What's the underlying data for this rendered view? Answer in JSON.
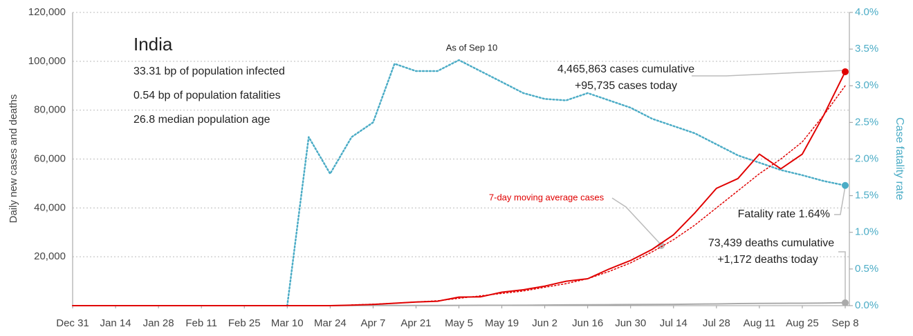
{
  "chart_data": {
    "type": "line",
    "title": "India",
    "annotations": {
      "infected": "33.31 bp of population infected",
      "fatalities": "0.54 bp of population fatalities",
      "age": "26.8 median population age",
      "as_of": "As of Sep 10",
      "cases_cumulative": "4,465,863 cases cumulative",
      "cases_today": "+95,735 cases today",
      "fatality_rate": "Fatality rate 1.64%",
      "deaths_cumulative": "73,439 deaths cumulative",
      "deaths_today": "+1,172 deaths today"
    },
    "y_label": "Daily new cases and deaths",
    "y2_label": "Case fatality rate",
    "categories": [
      "Dec 31",
      null,
      "Jan 14",
      null,
      "Jan 28",
      null,
      "Feb 11",
      null,
      "Feb 25",
      null,
      "Mar 10",
      null,
      "Mar 24",
      null,
      "Apr 7",
      null,
      "Apr 21",
      null,
      "May 5",
      null,
      "May 19",
      null,
      "Jun 2",
      null,
      "Jun 16",
      null,
      "Jun 30",
      null,
      "Jul 14",
      null,
      "Jul 28",
      null,
      "Aug 11",
      null,
      "Aug 25",
      null,
      "Sep 8"
    ],
    "series": [
      {
        "color": "#4bacc6",
        "style": "dotted",
        "axis": "y2",
        "values": [
          null,
          null,
          null,
          null,
          null,
          null,
          null,
          null,
          null,
          null,
          0,
          2.3,
          1.8,
          2.3,
          2.5,
          3.3,
          3.2,
          3.2,
          3.35,
          3.2,
          3.05,
          2.9,
          2.82,
          2.8,
          2.9,
          2.8,
          2.7,
          2.55,
          2.45,
          2.35,
          2.2,
          2.05,
          1.95,
          1.85,
          1.78,
          1.7,
          1.64
        ]
      },
      {
        "color": "#aaaaaa",
        "style": "solid",
        "values": [
          0,
          0,
          0,
          0,
          0,
          0,
          0,
          0,
          0,
          0,
          0,
          0,
          10,
          50,
          100,
          50,
          60,
          80,
          100,
          140,
          150,
          180,
          250,
          300,
          350,
          400,
          450,
          480,
          550,
          650,
          700,
          850,
          900,
          950,
          1000,
          1050,
          1172
        ]
      },
      {
        "name": "7-day moving average cases",
        "color": "#e00000",
        "style": "dotted",
        "values": [
          null,
          null,
          null,
          null,
          null,
          null,
          null,
          null,
          null,
          null,
          null,
          null,
          null,
          300,
          600,
          1000,
          1500,
          2000,
          3000,
          4000,
          5000,
          6000,
          7500,
          9000,
          11000,
          14000,
          17500,
          22000,
          27000,
          33000,
          40000,
          47000,
          54000,
          60000,
          67000,
          78000,
          90000
        ]
      },
      {
        "color": "#e00000",
        "style": "solid",
        "values": [
          0,
          0,
          0,
          0,
          0,
          0,
          0,
          0,
          0,
          0,
          0,
          0,
          0,
          200,
          500,
          1000,
          1500,
          1800,
          3500,
          3600,
          5500,
          6500,
          8000,
          10000,
          11000,
          15000,
          18500,
          23000,
          29000,
          38000,
          48000,
          52000,
          62000,
          56000,
          62000,
          78000,
          95735
        ]
      }
    ],
    "ylim": [
      0,
      120000
    ],
    "yticks": [
      {
        "value": 20000,
        "label": "20,000"
      },
      {
        "value": 40000,
        "label": "40,000"
      },
      {
        "value": 60000,
        "label": "60,000"
      },
      {
        "value": 80000,
        "label": "80,000"
      },
      {
        "value": 100000,
        "label": "100,000"
      },
      {
        "value": 120000,
        "label": "120,000"
      }
    ],
    "y2lim": [
      0,
      4
    ],
    "y2ticks": [
      {
        "value": 0,
        "label": "0.0%"
      },
      {
        "value": 0.5,
        "label": "0.5%"
      },
      {
        "value": 1,
        "label": "1.0%"
      },
      {
        "value": 1.5,
        "label": "1.5%"
      },
      {
        "value": 2,
        "label": "2.0%"
      },
      {
        "value": 2.5,
        "label": "2.5%"
      },
      {
        "value": 3,
        "label": "3.0%"
      },
      {
        "value": 3.5,
        "label": "3.5%"
      },
      {
        "value": 4,
        "label": "4.0%"
      }
    ],
    "grid": true
  }
}
